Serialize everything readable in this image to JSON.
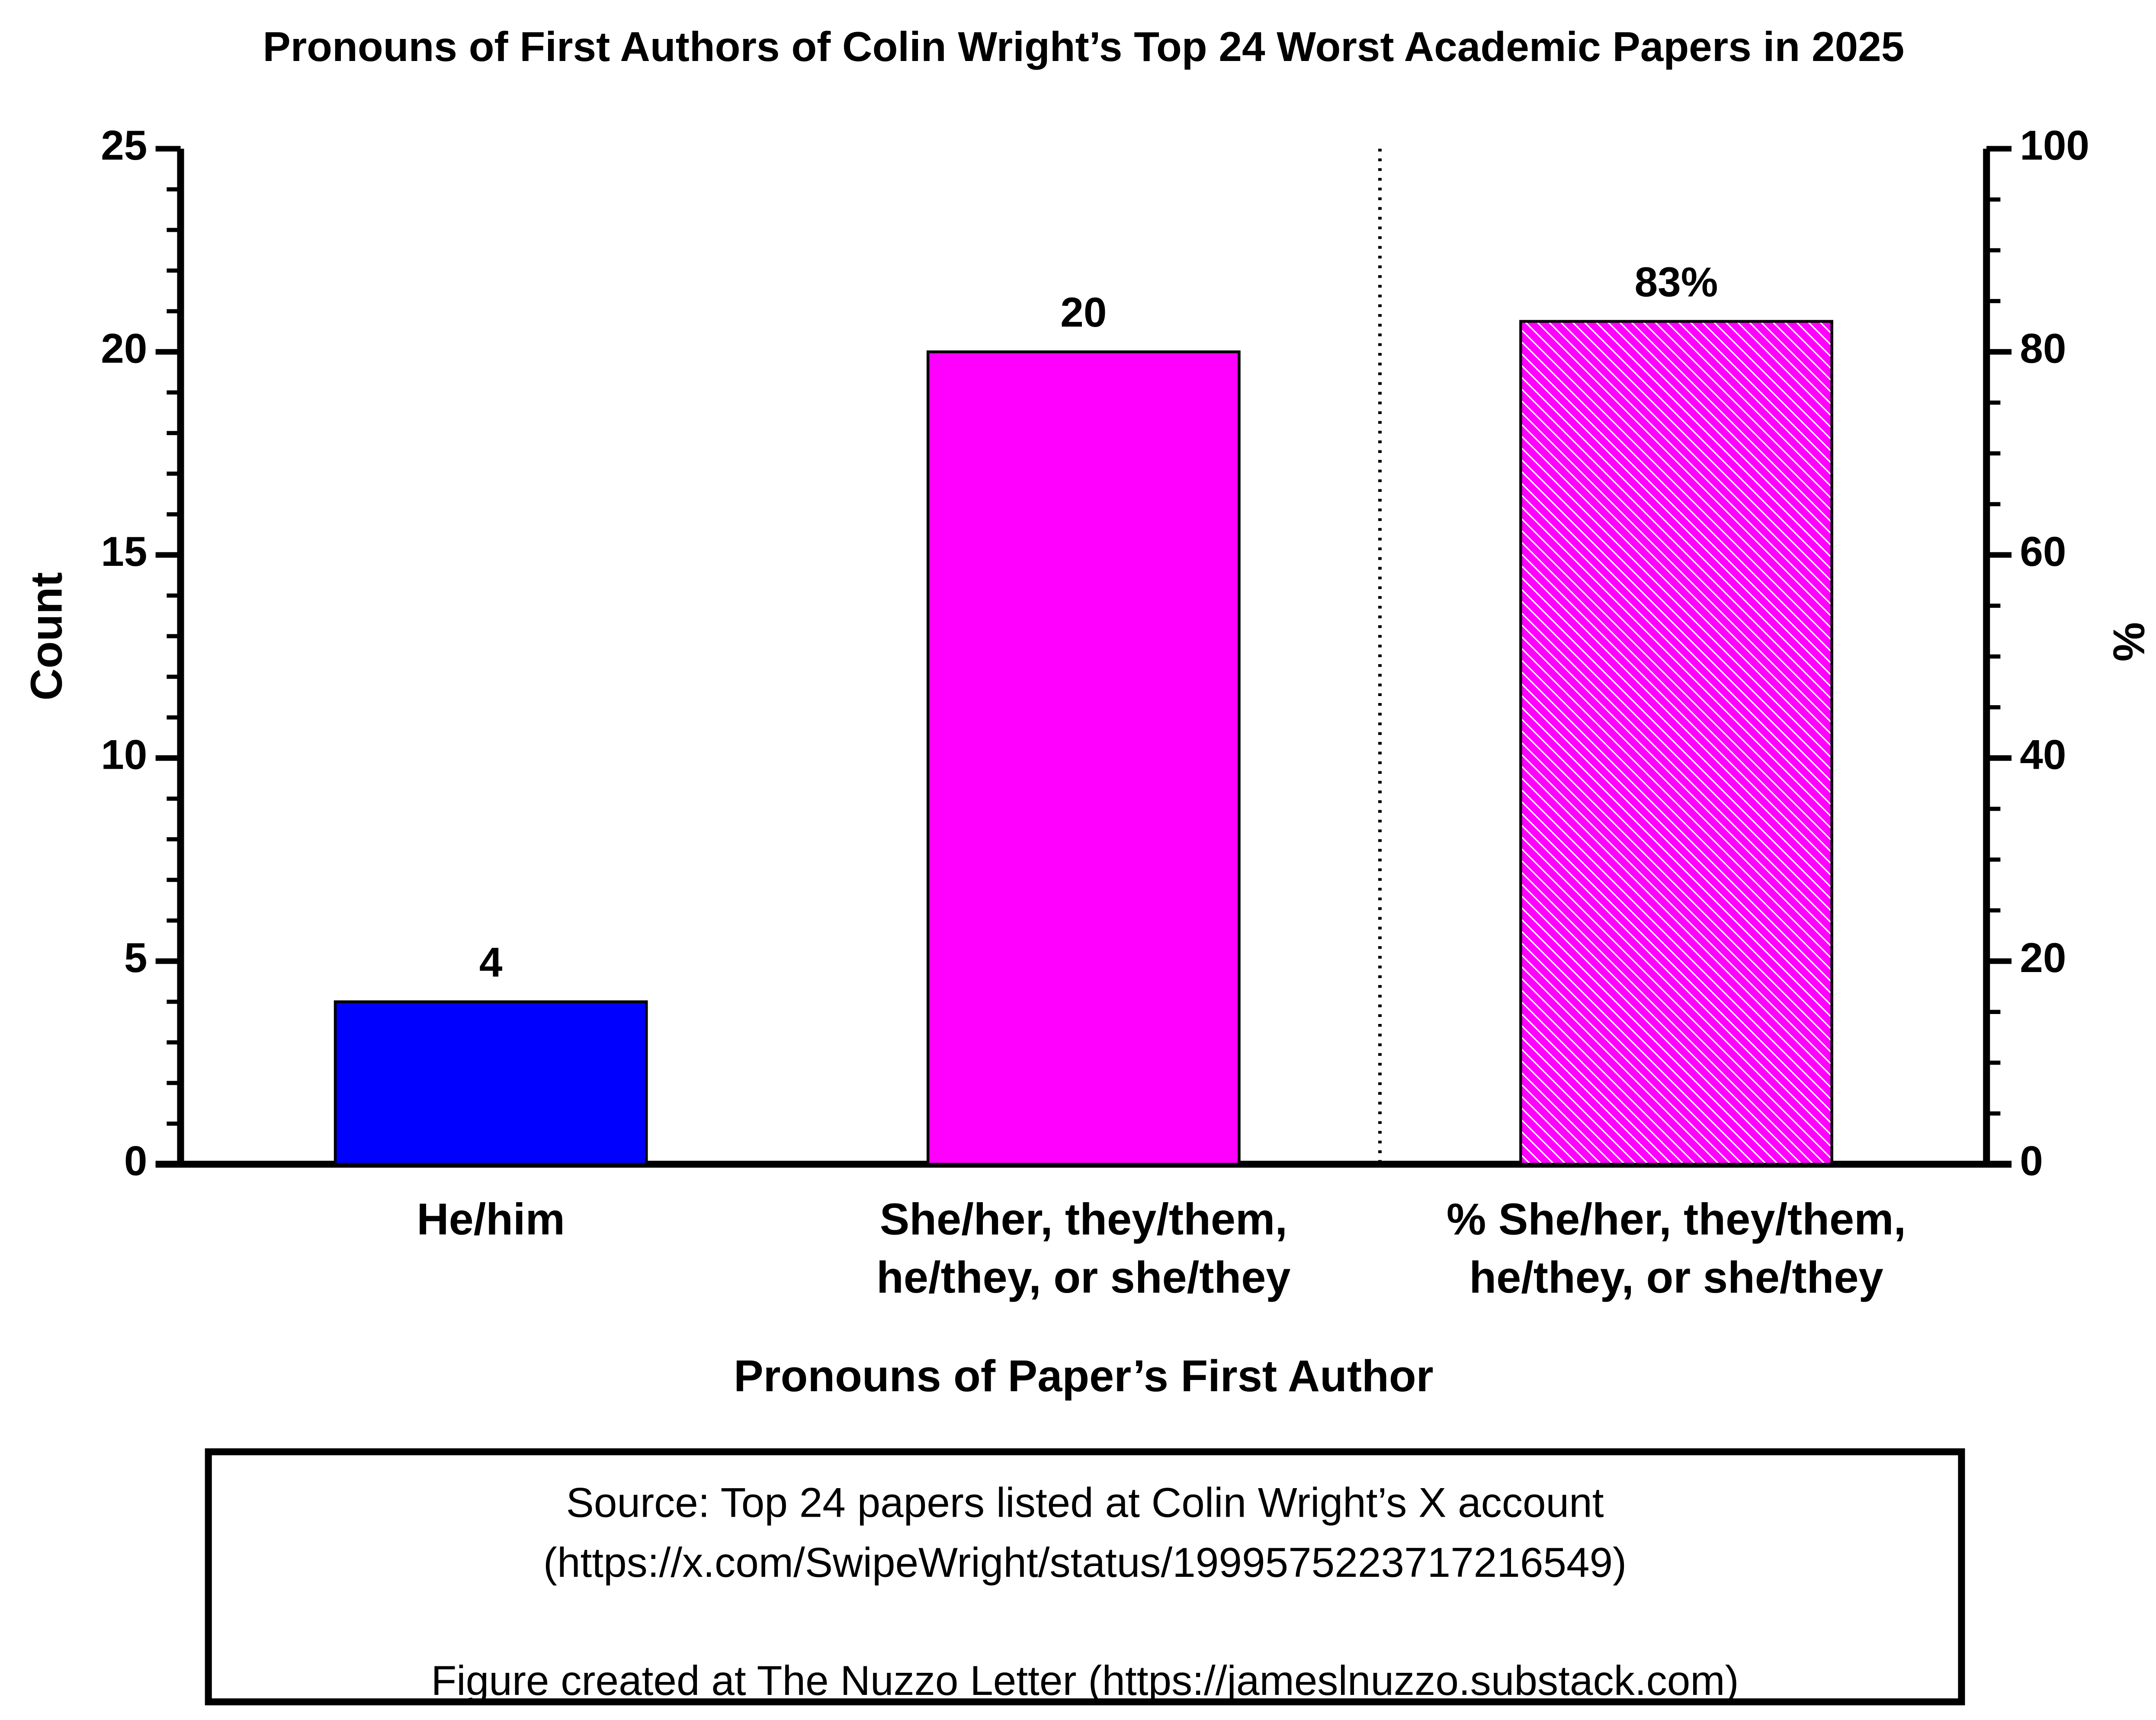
{
  "chart_data": {
    "type": "bar",
    "title": "Pronouns of First Authors of Colin Wright’s Top 24 Worst Academic Papers in 2025",
    "xlabel": "Pronouns of Paper’s First Author",
    "ylabel": "Count",
    "y2label": "%",
    "categories": [
      [
        "He/him"
      ],
      [
        "She/her, they/them,",
        "he/they, or she/they"
      ],
      [
        "% She/her, they/them,",
        "he/they, or she/they"
      ]
    ],
    "series": [
      {
        "colors": [
          "#0000ff",
          "#ff00ff",
          null
        ],
        "values": [
          4,
          20,
          null
        ]
      },
      {
        "axis": "y2",
        "color": "#ff00ff",
        "hatch": true,
        "values": [
          null,
          null,
          83
        ],
        "value_labels": [
          null,
          null,
          "83%"
        ]
      }
    ],
    "ylim": [
      0,
      25
    ],
    "yticks": [
      0,
      5,
      10,
      15,
      20,
      25
    ],
    "y_minor_step": 1,
    "y2lim": [
      0,
      100
    ],
    "y2ticks": [
      0,
      20,
      40,
      60,
      80,
      100
    ],
    "y2_minor_step": 5,
    "grid": false,
    "notes": [
      "Source: Top 24 papers listed at Colin Wright’s X account",
      "(https://x.com/SwipeWright/status/1999575223717216549)",
      "Figure created at The Nuzzo Letter (https://jameslnuzzo.substack.com)"
    ]
  }
}
